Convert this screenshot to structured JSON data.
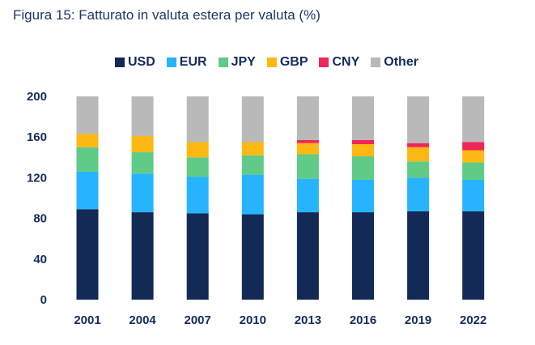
{
  "chart_data": {
    "type": "bar",
    "stacked": true,
    "title": "Figura 15: Fatturato in valuta estera per valuta (%)",
    "xlabel": "",
    "ylabel": "",
    "ylim": [
      0,
      200
    ],
    "yticks": [
      0,
      40,
      80,
      120,
      160,
      200
    ],
    "grid": false,
    "legend": "top",
    "categories": [
      "2001",
      "2004",
      "2007",
      "2010",
      "2013",
      "2016",
      "2019",
      "2022"
    ],
    "series": [
      {
        "name": "USD",
        "color": "#132a57",
        "values": [
          89,
          86,
          85,
          84,
          86,
          86,
          87,
          87
        ]
      },
      {
        "name": "EUR",
        "color": "#27b4ff",
        "values": [
          37,
          38,
          36,
          39,
          33,
          32,
          33,
          31
        ]
      },
      {
        "name": "JPY",
        "color": "#5fcb86",
        "values": [
          24,
          21,
          19,
          19,
          24,
          23,
          16,
          17
        ]
      },
      {
        "name": "GBP",
        "color": "#fdb813",
        "values": [
          13,
          16,
          15,
          13,
          11,
          12,
          14,
          12
        ]
      },
      {
        "name": "CNY",
        "color": "#f0265a",
        "values": [
          0,
          0,
          0,
          0,
          3,
          4,
          4,
          8
        ]
      },
      {
        "name": "Other",
        "color": "#b9b9b9",
        "values": [
          37,
          39,
          45,
          45,
          43,
          43,
          46,
          45
        ]
      }
    ]
  }
}
